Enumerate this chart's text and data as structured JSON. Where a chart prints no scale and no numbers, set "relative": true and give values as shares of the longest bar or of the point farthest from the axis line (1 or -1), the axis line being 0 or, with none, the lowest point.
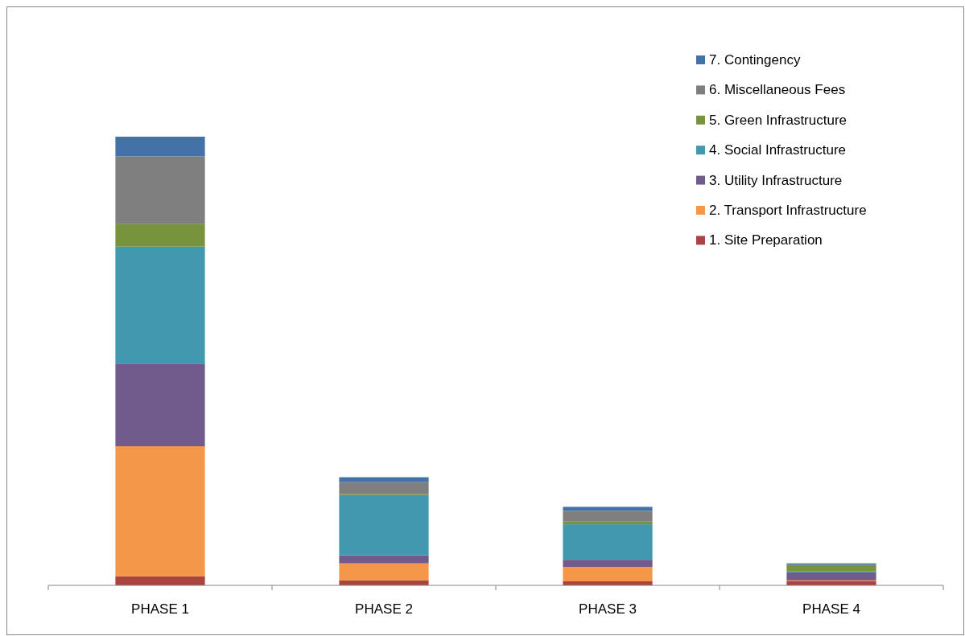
{
  "chart_data": {
    "type": "bar",
    "stacked": true,
    "relative": true,
    "legend": "top right",
    "categories": [
      "PHASE 1",
      "PHASE 2",
      "PHASE 3",
      "PHASE 4"
    ],
    "series": [
      {
        "name": "1. Site Preparation",
        "color": "#a94442",
        "values": [
          0.02,
          0.011,
          0.009,
          0.009
        ]
      },
      {
        "name": "2. Transport Infrastructure",
        "color": "#f59748",
        "values": [
          0.29,
          0.038,
          0.032,
          0.002
        ]
      },
      {
        "name": "3. Utility Infrastructure",
        "color": "#715a8c",
        "values": [
          0.183,
          0.018,
          0.016,
          0.018
        ]
      },
      {
        "name": "4. Social Infrastructure",
        "color": "#4198af",
        "values": [
          0.262,
          0.134,
          0.079,
          0.003
        ]
      },
      {
        "name": "5. Green Infrastructure",
        "color": "#77933c",
        "values": [
          0.05,
          0.002,
          0.007,
          0.013
        ]
      },
      {
        "name": "6. Miscellaneous Fees",
        "color": "#7f7f7f",
        "values": [
          0.151,
          0.027,
          0.023,
          0.001
        ]
      },
      {
        "name": "7. Contingency",
        "color": "#4472a8",
        "values": [
          0.044,
          0.011,
          0.009,
          0.003
        ]
      }
    ]
  }
}
